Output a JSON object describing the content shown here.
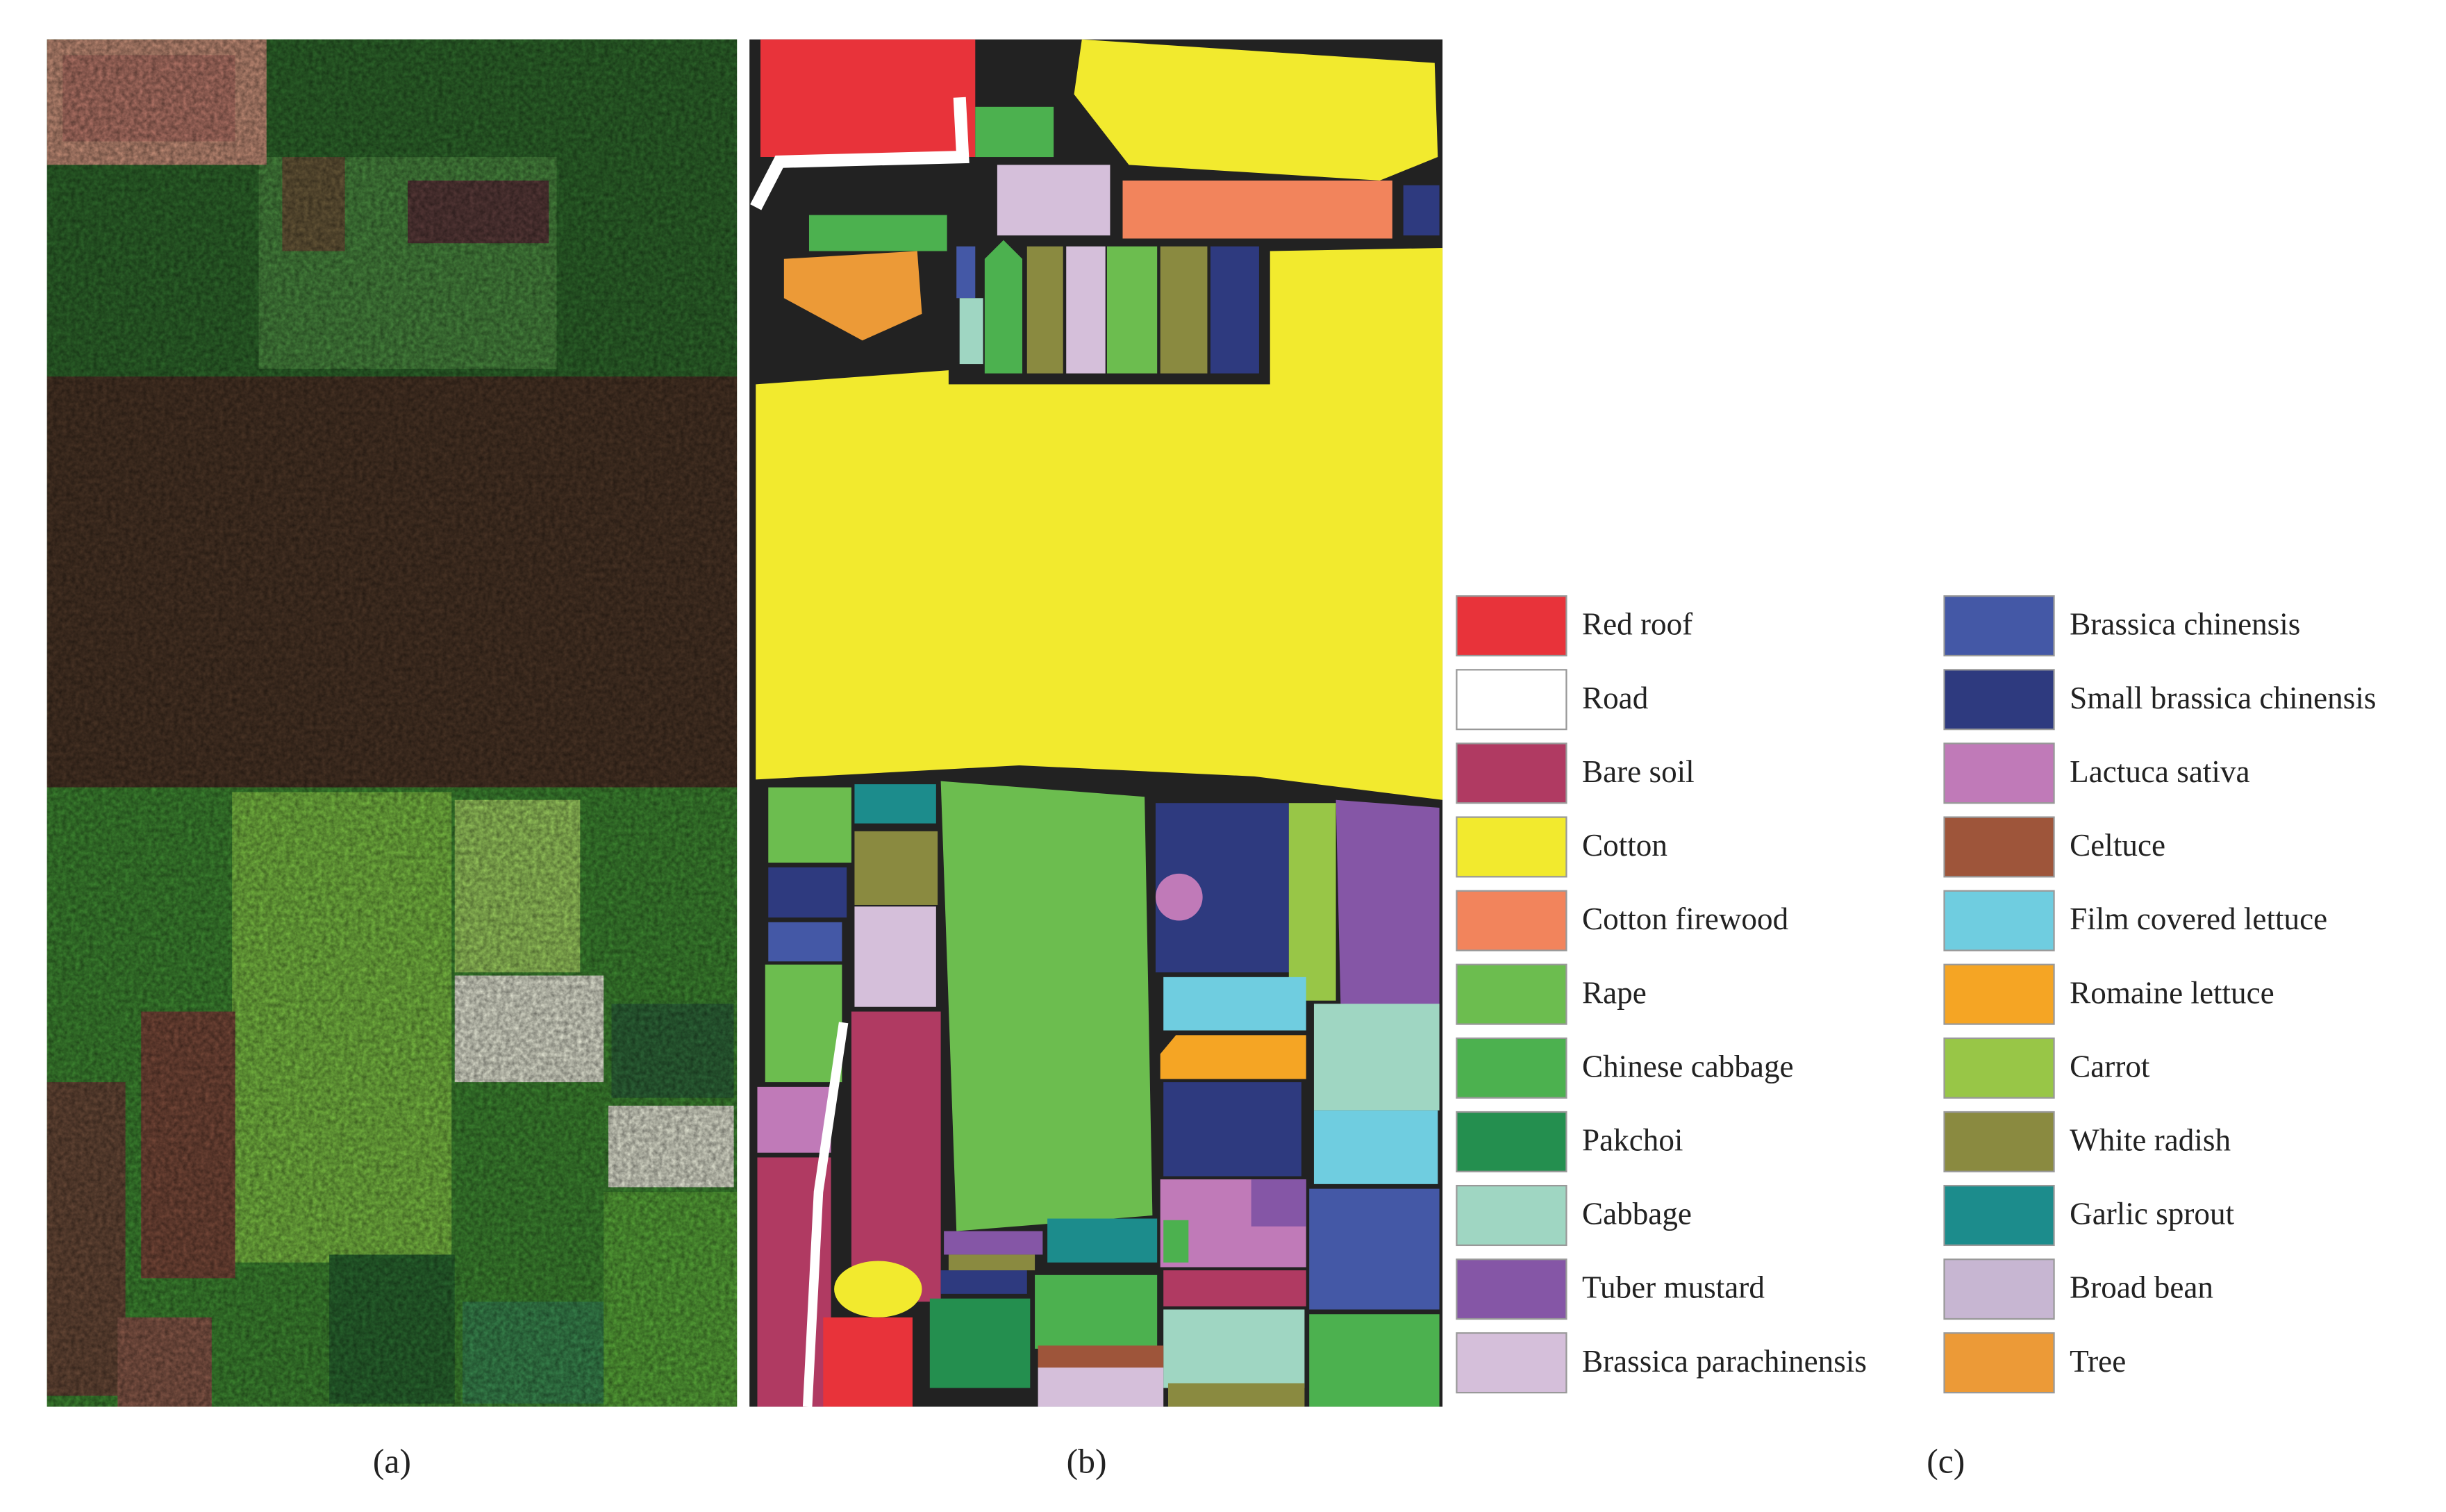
{
  "figure": {
    "panels": [
      {
        "label": "(a)"
      },
      {
        "label": "(b)"
      },
      {
        "label": "(c)"
      }
    ],
    "legend": [
      {
        "name": "Red roof",
        "color": "#e8333a"
      },
      {
        "name": "Road",
        "color": "#ffffff"
      },
      {
        "name": "Bare soil",
        "color": "#b03a62"
      },
      {
        "name": "Cotton",
        "color": "#f2ea2e"
      },
      {
        "name": "Cotton firewood",
        "color": "#f2845c"
      },
      {
        "name": "Rape",
        "color": "#6cbd4f"
      },
      {
        "name": "Chinese cabbage",
        "color": "#4cb14f"
      },
      {
        "name": "Pakchoi",
        "color": "#248f4f"
      },
      {
        "name": "Cabbage",
        "color": "#9fd6c2"
      },
      {
        "name": "Tuber mustard",
        "color": "#8556a6"
      },
      {
        "name": "Brassica parachinensis",
        "color": "#d5bfda"
      },
      {
        "name": "Brassica chinensis",
        "color": "#4458a6"
      },
      {
        "name": "Small brassica chinensis",
        "color": "#2e3a7f"
      },
      {
        "name": "Lactuca sativa",
        "color": "#c07ab8"
      },
      {
        "name": "Celtuce",
        "color": "#9e553a"
      },
      {
        "name": "Film covered lettuce",
        "color": "#6fcde0"
      },
      {
        "name": "Romaine lettuce",
        "color": "#f5a524"
      },
      {
        "name": "Carrot",
        "color": "#98c647"
      },
      {
        "name": "White radish",
        "color": "#8a8a40"
      },
      {
        "name": "Garlic sprout",
        "color": "#1c8c8c"
      },
      {
        "name": "Broad bean",
        "color": "#c7b6d2"
      },
      {
        "name": "Tree",
        "color": "#ec9a37"
      }
    ]
  }
}
